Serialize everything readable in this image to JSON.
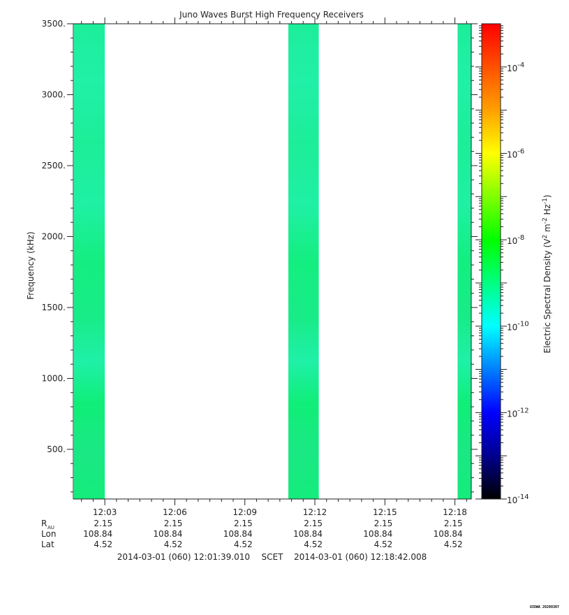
{
  "stamp": "UIOWA 20200307",
  "chart_data": {
    "type": "heatmap",
    "title": "Juno Waves Burst High Frequency Receivers",
    "ylabel": "Frequency (kHz)",
    "ylim": [
      150,
      3500
    ],
    "yticks": [
      500,
      1000,
      1500,
      2000,
      2500,
      3000,
      3500
    ],
    "ytick_labels": [
      "500.",
      "1000.",
      "1500.",
      "2000.",
      "2500.",
      "3000.",
      "3500."
    ],
    "xlim": [
      "12:01:39",
      "12:18:42"
    ],
    "xticks": [
      "12:03",
      "12:06",
      "12:09",
      "12:12",
      "12:15",
      "12:18"
    ],
    "bursts": [
      {
        "start": "12:01:39",
        "end": "12:03:00"
      },
      {
        "start": "12:10:50",
        "end": "12:12:10"
      },
      {
        "start": "12:18:05",
        "end": "12:18:42"
      }
    ],
    "colorbar": {
      "label_parts": [
        "Electric Spectral Density (V",
        "2",
        " m",
        "-2",
        " Hz",
        "-1",
        ")"
      ],
      "scale": "log",
      "range": [
        1e-14,
        0.001
      ],
      "ticks": [
        {
          "value": -14,
          "base": "10",
          "exp": "-14"
        },
        {
          "value": -12,
          "base": "10",
          "exp": "-12"
        },
        {
          "value": -10,
          "base": "10",
          "exp": "-10"
        },
        {
          "value": -8,
          "base": "10",
          "exp": "-8"
        },
        {
          "value": -6,
          "base": "10",
          "exp": "-6"
        },
        {
          "value": -4,
          "base": "10",
          "exp": "-4"
        }
      ],
      "colors": [
        "#000000",
        "#00008f",
        "#0000ff",
        "#0080ff",
        "#00ffff",
        "#00ff80",
        "#00ff00",
        "#80ff00",
        "#ffff00",
        "#ffa000",
        "#ff5000",
        "#ff0000"
      ]
    },
    "ephemeris": {
      "rows": [
        {
          "label": "R",
          "sub": "AU",
          "values": [
            "2.15",
            "2.15",
            "2.15",
            "2.15",
            "2.15",
            "2.15"
          ]
        },
        {
          "label": "Lon",
          "sub": "",
          "values": [
            "108.84",
            "108.84",
            "108.84",
            "108.84",
            "108.84",
            "108.84"
          ]
        },
        {
          "label": "Lat",
          "sub": "",
          "values": [
            "4.52",
            "4.52",
            "4.52",
            "4.52",
            "4.52",
            "4.52"
          ]
        }
      ]
    },
    "time_range": {
      "start": "2014-03-01 (060) 12:01:39.010",
      "label": "SCET",
      "end": "2014-03-01 (060) 12:18:42.008"
    }
  }
}
